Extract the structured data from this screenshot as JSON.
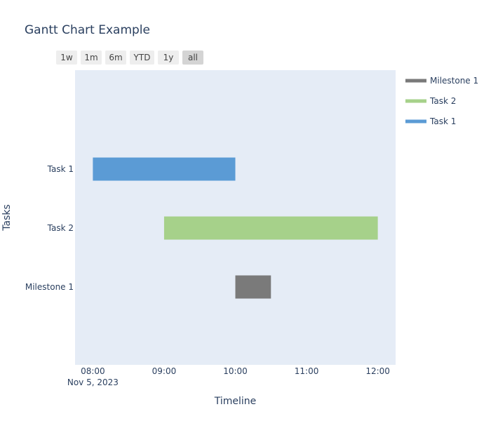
{
  "chart_data": {
    "type": "bar",
    "orientation": "horizontal",
    "title": "Gantt Chart Example",
    "xlabel": "Timeline",
    "ylabel": "Tasks",
    "x_type": "date",
    "x_range": [
      "2023-11-05 07:45",
      "2023-11-05 12:15"
    ],
    "x_ticks": [
      {
        "value": "2023-11-05 08:00",
        "label": "08:00",
        "sublabel": "Nov 5, 2023"
      },
      {
        "value": "2023-11-05 09:00",
        "label": "09:00",
        "sublabel": ""
      },
      {
        "value": "2023-11-05 10:00",
        "label": "10:00",
        "sublabel": ""
      },
      {
        "value": "2023-11-05 11:00",
        "label": "11:00",
        "sublabel": ""
      },
      {
        "value": "2023-11-05 12:00",
        "label": "12:00",
        "sublabel": ""
      }
    ],
    "categories": [
      "Task 1",
      "Task 2",
      "Milestone 1"
    ],
    "series": [
      {
        "name": "Task 1",
        "category": "Task 1",
        "start": "2023-11-05 08:00",
        "end": "2023-11-05 10:00",
        "color": "#5b9bd5"
      },
      {
        "name": "Task 2",
        "category": "Task 2",
        "start": "2023-11-05 09:00",
        "end": "2023-11-05 12:00",
        "color": "#a6d18a"
      },
      {
        "name": "Milestone 1",
        "category": "Milestone 1",
        "start": "2023-11-05 10:00",
        "end": "2023-11-05 10:30",
        "color": "#7a7a7a"
      }
    ],
    "legend": {
      "position": "right",
      "order": [
        "Milestone 1",
        "Task 2",
        "Task 1"
      ]
    },
    "plot_background": "#e5ecf6",
    "grid": false
  },
  "range_selector": {
    "buttons": [
      {
        "label": "1w",
        "active": false
      },
      {
        "label": "1m",
        "active": false
      },
      {
        "label": "6m",
        "active": false
      },
      {
        "label": "YTD",
        "active": false
      },
      {
        "label": "1y",
        "active": false
      },
      {
        "label": "all",
        "active": true
      }
    ]
  }
}
